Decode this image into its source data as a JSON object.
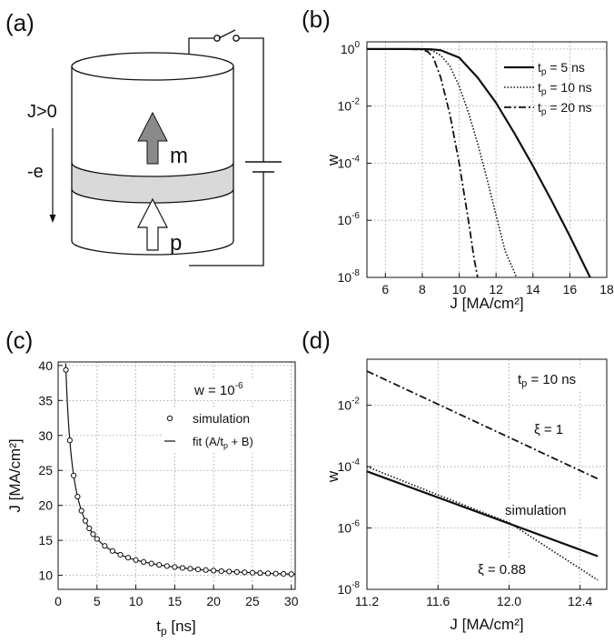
{
  "panel_labels": {
    "a": "(a)",
    "b": "(b)",
    "c": "(c)",
    "d": "(d)"
  },
  "schematic": {
    "current_label": "J>0",
    "electron_label": "-e",
    "free_layer_label": "m",
    "fixed_layer_label": "p"
  },
  "colors": {
    "line": "#111111",
    "spacer": "#d9d9d9",
    "m_arrow": "#8a8a8a",
    "grid": "#9a9a9a"
  },
  "chart_data": [
    {
      "id": "b",
      "type": "line",
      "xlabel": "J [MA/cm²]",
      "ylabel": "w",
      "xlim": [
        5,
        18
      ],
      "ylim_log10": [
        -8,
        0.25
      ],
      "log_y": true,
      "grid": true,
      "legend_position": "top-right",
      "x_ticks": [
        6,
        8,
        10,
        12,
        14,
        16,
        18
      ],
      "y_ticks": [
        {
          "base": "10",
          "exp": "0",
          "value": 1
        },
        {
          "base": "10",
          "exp": "-2",
          "value": 0.01
        },
        {
          "base": "10",
          "exp": "-4",
          "value": 0.0001
        },
        {
          "base": "10",
          "exp": "-6",
          "value": 1e-06
        },
        {
          "base": "10",
          "exp": "-8",
          "value": 1e-08
        }
      ],
      "series": [
        {
          "name": "tp = 5 ns",
          "legend": {
            "pre": "t",
            "sub": "p",
            "post": " = 5 ns"
          },
          "dash": "solid",
          "x": [
            5,
            7,
            8,
            8.5,
            9,
            10,
            11,
            12,
            13,
            14,
            15,
            16,
            17.1
          ],
          "y": [
            1,
            1,
            0.99,
            0.97,
            0.9,
            0.5,
            0.1,
            0.013,
            0.0011,
            8e-05,
            5e-06,
            2.8e-07,
            1e-08
          ]
        },
        {
          "name": "tp = 10 ns",
          "legend": {
            "pre": "t",
            "sub": "p",
            "post": " = 10 ns"
          },
          "dash": "dot",
          "x": [
            5,
            7,
            8,
            8.5,
            9,
            9.5,
            10,
            10.5,
            11,
            11.5,
            12,
            12.5,
            13,
            13.1
          ],
          "y": [
            1,
            1,
            0.98,
            0.9,
            0.6,
            0.25,
            0.05,
            0.006,
            0.0005,
            3e-05,
            1.5e-06,
            8e-08,
            1.5e-08,
            1e-08
          ]
        },
        {
          "name": "tp = 20 ns",
          "legend": {
            "pre": "t",
            "sub": "p",
            "post": " = 20 ns"
          },
          "dash": "dashdot",
          "x": [
            5,
            7,
            8,
            8.3,
            8.6,
            9,
            9.5,
            10,
            10.5,
            10.8,
            11
          ],
          "y": [
            1,
            1,
            0.95,
            0.8,
            0.5,
            0.1,
            0.005,
            0.0001,
            1e-06,
            5e-08,
            1e-08
          ]
        }
      ]
    },
    {
      "id": "c",
      "type": "scatter",
      "title": {
        "pre": "w = 10",
        "sup": "-6"
      },
      "xlabel": {
        "pre": "t",
        "sub": "p",
        "post": " [ns]"
      },
      "ylabel": "J [MA/cm²]",
      "xlim": [
        0,
        30.5
      ],
      "ylim": [
        8,
        40.5
      ],
      "grid": true,
      "legend_position": "right",
      "x_ticks": [
        0,
        5,
        10,
        15,
        20,
        25,
        30
      ],
      "y_ticks": [
        10,
        15,
        20,
        25,
        30,
        35,
        40
      ],
      "A": 30.2,
      "B": 9.17,
      "simulation_x": [
        1,
        1.5,
        2,
        2.5,
        3,
        3.5,
        4,
        4.5,
        5,
        6,
        7,
        8,
        9,
        10,
        11,
        12,
        13,
        14,
        15,
        16,
        17,
        18,
        19,
        20,
        21,
        22,
        23,
        24,
        25,
        26,
        27,
        28,
        29,
        30
      ],
      "series": [
        {
          "name": "simulation",
          "marker": "circle"
        },
        {
          "name": "fit (A/tp + B)",
          "legend": {
            "pre": "fit (A/t",
            "sub": "p",
            "post": " + B)"
          },
          "dash": "solid"
        }
      ]
    },
    {
      "id": "d",
      "type": "line",
      "xlabel": "J [MA/cm²]",
      "ylabel": "w",
      "xlim": [
        11.2,
        12.55
      ],
      "ylim_log10": [
        -8,
        -0.5
      ],
      "log_y": true,
      "grid": true,
      "x_ticks": [
        11.2,
        11.6,
        12.0,
        12.4
      ],
      "x_tick_labels": [
        "11.2",
        "11.6",
        "12.0",
        "12.4"
      ],
      "y_ticks": [
        {
          "base": "10",
          "exp": "-2",
          "value": 0.01
        },
        {
          "base": "10",
          "exp": "-4",
          "value": 0.0001
        },
        {
          "base": "10",
          "exp": "-6",
          "value": 1e-06
        },
        {
          "base": "10",
          "exp": "-8",
          "value": 1e-08
        }
      ],
      "corner_label": {
        "pre": "t",
        "sub": "p",
        "post": " = 10 ns"
      },
      "series": [
        {
          "name": "ξ = 1",
          "dash": "dashdot",
          "x": [
            11.2,
            12.5
          ],
          "y": [
            0.13,
            4e-05
          ]
        },
        {
          "name": "simulation",
          "dash": "solid",
          "x": [
            11.2,
            12.5
          ],
          "y": [
            7e-05,
            1.2e-07
          ]
        },
        {
          "name": "ξ = 0.88",
          "dash": "dot",
          "x": [
            11.2,
            11.6,
            12.0,
            12.5
          ],
          "y": [
            0.0001,
            1.2e-05,
            1.5e-06,
            2e-08
          ]
        }
      ]
    }
  ]
}
